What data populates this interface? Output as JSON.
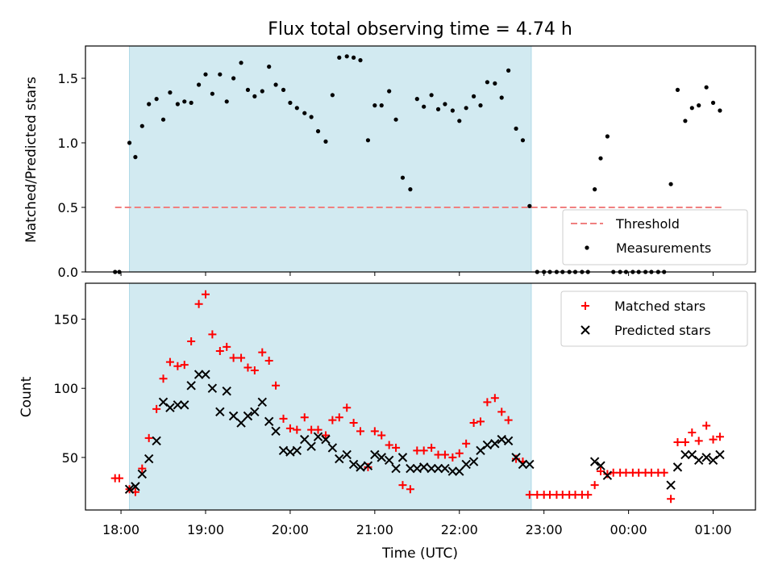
{
  "figure": {
    "title": "Flux total observing time = 4.74 h",
    "xlabel": "Time (UTC)"
  },
  "colors": {
    "shade": "#add8e6",
    "threshold": "#f08080",
    "measurements": "#000000",
    "matched": "#ff0000",
    "predicted": "#000000"
  },
  "x_ticks": {
    "hours": [
      18,
      19,
      20,
      21,
      22,
      23,
      24,
      25
    ],
    "labels": [
      "18:00",
      "19:00",
      "20:00",
      "21:00",
      "22:00",
      "23:00",
      "00:00",
      "01:00"
    ]
  },
  "chart_data": [
    {
      "type": "scatter",
      "ylabel": "Matched/Predicted stars",
      "xlim": [
        17.58,
        25.5
      ],
      "ylim": [
        0,
        1.75
      ],
      "yticks": [
        0.0,
        0.5,
        1.0,
        1.5
      ],
      "ytick_labels": [
        "0.0",
        "0.5",
        "1.0",
        "1.5"
      ],
      "shaded_region": [
        18.1,
        22.85
      ],
      "threshold": {
        "name": "Threshold",
        "value": 0.5,
        "x_range": [
          17.93,
          25.12
        ]
      },
      "legend": {
        "position": "lower-right",
        "entries": [
          "Threshold",
          "Measurements"
        ]
      },
      "series": [
        {
          "name": "Measurements",
          "x": [
            17.93,
            17.98,
            18.1,
            18.17,
            18.25,
            18.33,
            18.42,
            18.5,
            18.58,
            18.67,
            18.75,
            18.83,
            18.92,
            19.0,
            19.08,
            19.17,
            19.25,
            19.33,
            19.42,
            19.5,
            19.58,
            19.67,
            19.75,
            19.83,
            19.92,
            20.0,
            20.08,
            20.17,
            20.25,
            20.33,
            20.42,
            20.5,
            20.58,
            20.67,
            20.75,
            20.83,
            20.92,
            21.0,
            21.08,
            21.17,
            21.25,
            21.33,
            21.42,
            21.5,
            21.58,
            21.67,
            21.75,
            21.83,
            21.92,
            22.0,
            22.08,
            22.17,
            22.25,
            22.33,
            22.42,
            22.5,
            22.58,
            22.67,
            22.75,
            22.83,
            22.92,
            23.0,
            23.07,
            23.15,
            23.22,
            23.3,
            23.37,
            23.45,
            23.52,
            23.6,
            23.67,
            23.75,
            23.82,
            23.9,
            23.97,
            24.05,
            24.12,
            24.2,
            24.27,
            24.35,
            24.42,
            24.5,
            24.58,
            24.67,
            24.75,
            24.83,
            24.92,
            25.0,
            25.08
          ],
          "y": [
            0,
            0,
            1.0,
            0.89,
            1.13,
            1.3,
            1.34,
            1.18,
            1.39,
            1.3,
            1.32,
            1.31,
            1.45,
            1.53,
            1.38,
            1.53,
            1.32,
            1.5,
            1.62,
            1.41,
            1.36,
            1.4,
            1.59,
            1.45,
            1.41,
            1.31,
            1.27,
            1.23,
            1.2,
            1.09,
            1.01,
            1.37,
            1.66,
            1.67,
            1.66,
            1.64,
            1.02,
            1.29,
            1.29,
            1.4,
            1.18,
            0.73,
            0.64,
            1.34,
            1.28,
            1.37,
            1.26,
            1.3,
            1.25,
            1.17,
            1.27,
            1.36,
            1.29,
            1.47,
            1.46,
            1.35,
            1.56,
            1.11,
            1.02,
            0.51,
            0,
            0,
            0,
            0,
            0,
            0,
            0,
            0,
            0,
            0.64,
            0.88,
            1.05,
            0,
            0,
            0,
            0,
            0,
            0,
            0,
            0,
            0,
            0.68,
            1.41,
            1.17,
            1.27,
            1.29,
            1.43,
            1.31,
            1.25
          ]
        }
      ]
    },
    {
      "type": "scatter",
      "ylabel": "Count",
      "xlabel": "Time (UTC)",
      "xlim": [
        17.58,
        25.5
      ],
      "ylim": [
        12,
        176
      ],
      "yticks": [
        50,
        100,
        150
      ],
      "ytick_labels": [
        "50",
        "100",
        "150"
      ],
      "shaded_region": [
        18.1,
        22.85
      ],
      "legend": {
        "position": "upper-right",
        "entries": [
          "Matched stars",
          "Predicted stars"
        ]
      },
      "series": [
        {
          "name": "Matched stars",
          "marker": "plus",
          "x": [
            17.93,
            17.98,
            18.1,
            18.17,
            18.25,
            18.33,
            18.42,
            18.5,
            18.58,
            18.67,
            18.75,
            18.83,
            18.92,
            19.0,
            19.08,
            19.17,
            19.25,
            19.33,
            19.42,
            19.5,
            19.58,
            19.67,
            19.75,
            19.83,
            19.92,
            20.0,
            20.08,
            20.17,
            20.25,
            20.33,
            20.42,
            20.5,
            20.58,
            20.67,
            20.75,
            20.83,
            20.92,
            21.0,
            21.08,
            21.17,
            21.25,
            21.33,
            21.42,
            21.5,
            21.58,
            21.67,
            21.75,
            21.83,
            21.92,
            22.0,
            22.08,
            22.17,
            22.25,
            22.33,
            22.42,
            22.5,
            22.58,
            22.67,
            22.75,
            22.83,
            22.92,
            23.0,
            23.07,
            23.15,
            23.22,
            23.3,
            23.37,
            23.45,
            23.52,
            23.6,
            23.67,
            23.75,
            23.82,
            23.9,
            23.97,
            24.05,
            24.12,
            24.2,
            24.27,
            24.35,
            24.42,
            24.5,
            24.58,
            24.67,
            24.75,
            24.83,
            24.92,
            25.0,
            25.08
          ],
          "y": [
            35,
            35,
            27,
            25,
            42,
            64,
            85,
            107,
            119,
            116,
            117,
            134,
            161,
            168,
            139,
            127,
            130,
            122,
            122,
            115,
            113,
            126,
            120,
            102,
            78,
            71,
            70,
            79,
            70,
            70,
            66,
            77,
            79,
            86,
            75,
            69,
            43,
            69,
            66,
            59,
            57,
            30,
            27,
            55,
            55,
            57,
            52,
            52,
            50,
            53,
            60,
            75,
            76,
            90,
            93,
            83,
            77,
            49,
            47,
            23,
            23,
            23,
            23,
            23,
            23,
            23,
            23,
            23,
            23,
            30,
            40,
            38,
            39,
            39,
            39,
            39,
            39,
            39,
            39,
            39,
            39,
            20,
            61,
            61,
            68,
            62,
            73,
            63,
            65
          ]
        },
        {
          "name": "Predicted stars",
          "marker": "x",
          "x": [
            18.1,
            18.17,
            18.25,
            18.33,
            18.42,
            18.5,
            18.58,
            18.67,
            18.75,
            18.83,
            18.92,
            19.0,
            19.08,
            19.17,
            19.25,
            19.33,
            19.42,
            19.5,
            19.58,
            19.67,
            19.75,
            19.83,
            19.92,
            20.0,
            20.08,
            20.17,
            20.25,
            20.33,
            20.42,
            20.5,
            20.58,
            20.67,
            20.75,
            20.83,
            20.92,
            21.0,
            21.08,
            21.17,
            21.25,
            21.33,
            21.42,
            21.5,
            21.58,
            21.67,
            21.75,
            21.83,
            21.92,
            22.0,
            22.08,
            22.17,
            22.25,
            22.33,
            22.42,
            22.5,
            22.58,
            22.67,
            22.75,
            22.83,
            23.6,
            23.67,
            23.75,
            24.5,
            24.58,
            24.67,
            24.75,
            24.83,
            24.92,
            25.0,
            25.08
          ],
          "y": [
            27,
            29,
            38,
            49,
            62,
            90,
            86,
            88,
            88,
            102,
            110,
            110,
            100,
            83,
            98,
            80,
            75,
            80,
            83,
            90,
            76,
            69,
            55,
            54,
            55,
            63,
            58,
            65,
            63,
            57,
            49,
            52,
            45,
            43,
            44,
            52,
            50,
            48,
            42,
            50,
            42,
            42,
            43,
            42,
            42,
            42,
            40,
            40,
            45,
            47,
            55,
            59,
            60,
            63,
            62,
            50,
            45,
            45,
            47,
            44,
            37,
            30,
            43,
            52,
            52,
            48,
            50,
            48,
            52
          ]
        }
      ]
    }
  ]
}
